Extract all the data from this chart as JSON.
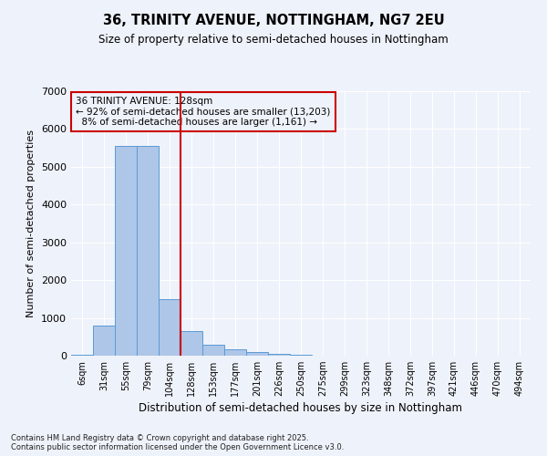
{
  "title": "36, TRINITY AVENUE, NOTTINGHAM, NG7 2EU",
  "subtitle": "Size of property relative to semi-detached houses in Nottingham",
  "xlabel": "Distribution of semi-detached houses by size in Nottingham",
  "ylabel": "Number of semi-detached properties",
  "categories": [
    "6sqm",
    "31sqm",
    "55sqm",
    "79sqm",
    "104sqm",
    "128sqm",
    "153sqm",
    "177sqm",
    "201sqm",
    "226sqm",
    "250sqm",
    "275sqm",
    "299sqm",
    "323sqm",
    "348sqm",
    "372sqm",
    "397sqm",
    "421sqm",
    "446sqm",
    "470sqm",
    "494sqm"
  ],
  "values": [
    30,
    800,
    5550,
    5550,
    1500,
    640,
    280,
    170,
    90,
    50,
    20,
    0,
    0,
    0,
    0,
    0,
    0,
    0,
    0,
    0,
    0
  ],
  "bar_color": "#aec6e8",
  "bar_edge_color": "#5b9bd5",
  "property_sqm": 128,
  "property_label": "36 TRINITY AVENUE: 128sqm",
  "smaller_pct": 92,
  "smaller_count": "13,203",
  "larger_pct": 8,
  "larger_count": "1,161",
  "annotation_box_color": "#cc0000",
  "vline_color": "#cc0000",
  "ylim": [
    0,
    7000
  ],
  "background_color": "#eef2fa",
  "grid_color": "#ffffff",
  "footer_line1": "Contains HM Land Registry data © Crown copyright and database right 2025.",
  "footer_line2": "Contains public sector information licensed under the Open Government Licence v3.0."
}
